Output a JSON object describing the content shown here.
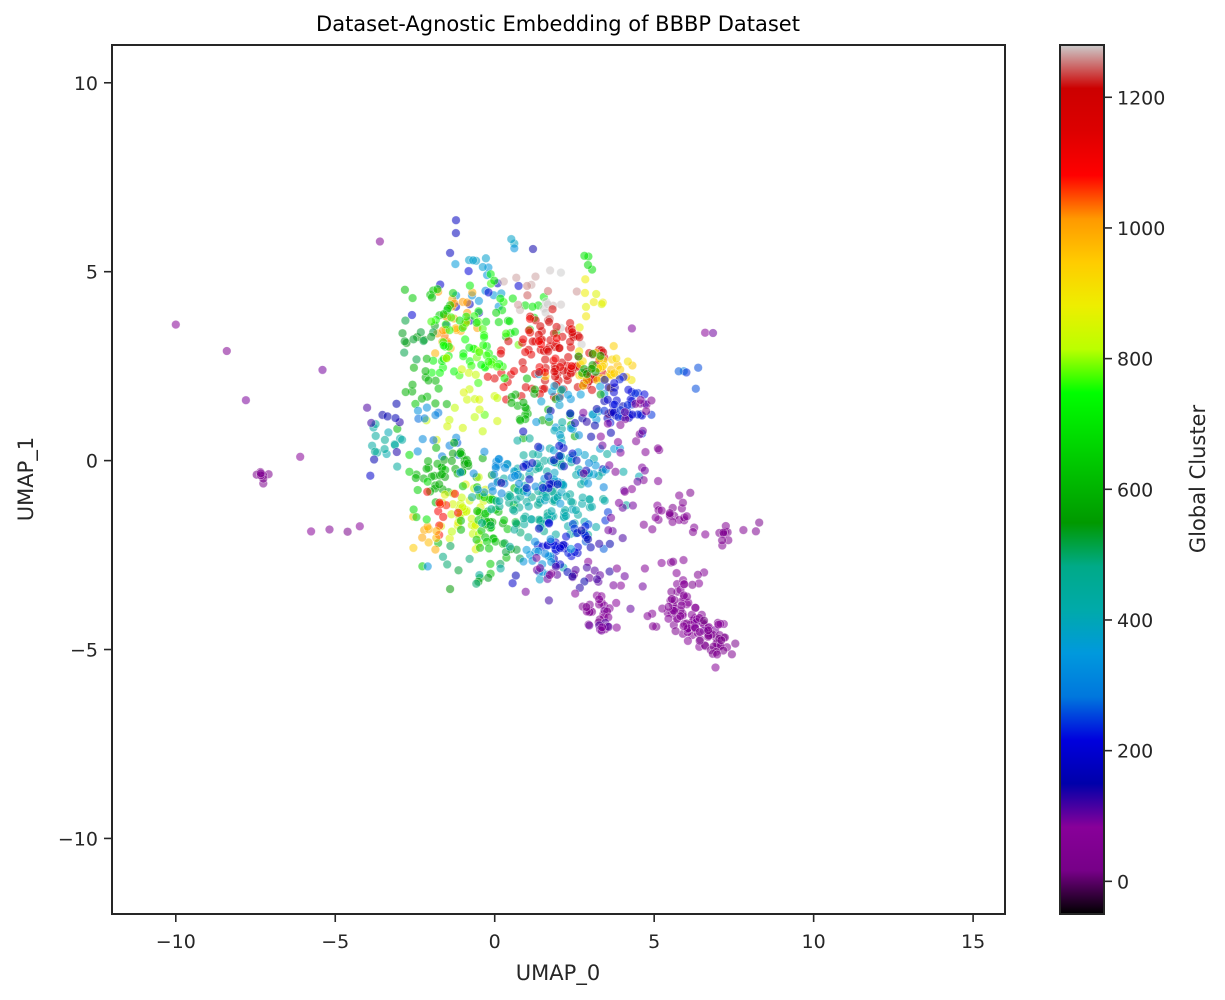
{
  "chart_data": {
    "type": "scatter",
    "title": "Dataset-Agnostic Embedding of BBBP Dataset",
    "xlabel": "UMAP_0",
    "ylabel": "UMAP_1",
    "xlim": [
      -12,
      16
    ],
    "ylim": [
      -12,
      11
    ],
    "xticks": [
      -10,
      -5,
      0,
      5,
      10,
      15
    ],
    "yticks": [
      -10,
      -5,
      0,
      5,
      10
    ],
    "xtick_labels": [
      "−10",
      "−5",
      "0",
      "5",
      "10",
      "15"
    ],
    "ytick_labels": [
      "−10",
      "−5",
      "0",
      "5",
      "10"
    ],
    "grid": false,
    "colorbar": {
      "label": "Global Cluster",
      "colormap": "nipy_spectral",
      "range": [
        -50,
        1280
      ],
      "ticks": [
        0,
        200,
        400,
        600,
        800,
        1000,
        1200
      ],
      "tick_labels": [
        "0",
        "200",
        "400",
        "600",
        "800",
        "1000",
        "1200"
      ]
    },
    "clusters": [
      {
        "cx": -7.3,
        "cy": -0.4,
        "sx": 0.15,
        "sy": 0.1,
        "n": 8,
        "c": 40
      },
      {
        "cx": -10.0,
        "cy": 3.6,
        "sx": 0.02,
        "sy": 0.02,
        "n": 1,
        "c": 60
      },
      {
        "cx": -8.4,
        "cy": 2.9,
        "sx": 0.02,
        "sy": 0.02,
        "n": 1,
        "c": 60
      },
      {
        "cx": -7.8,
        "cy": 1.6,
        "sx": 0.02,
        "sy": 0.02,
        "n": 1,
        "c": 90
      },
      {
        "cx": -5.4,
        "cy": 2.4,
        "sx": 0.02,
        "sy": 0.02,
        "n": 1,
        "c": 110
      },
      {
        "cx": -6.1,
        "cy": 0.1,
        "sx": 0.02,
        "sy": 0.02,
        "n": 1,
        "c": 60
      },
      {
        "cx": -5.0,
        "cy": -1.85,
        "sx": 0.6,
        "sy": 0.1,
        "n": 4,
        "c": 60
      },
      {
        "cx": -3.6,
        "cy": 5.8,
        "sx": 0.02,
        "sy": 0.02,
        "n": 1,
        "c": 80
      },
      {
        "cx": -1.2,
        "cy": 6.3,
        "sx": 0.05,
        "sy": 0.15,
        "n": 2,
        "c": 180
      },
      {
        "cx": 1.2,
        "cy": 5.6,
        "sx": 0.02,
        "sy": 0.02,
        "n": 1,
        "c": 170
      },
      {
        "cx": 0.5,
        "cy": 5.8,
        "sx": 0.2,
        "sy": 0.15,
        "n": 3,
        "c": 360
      },
      {
        "cx": 2.9,
        "cy": 5.3,
        "sx": 0.1,
        "sy": 0.15,
        "n": 4,
        "c": 690
      },
      {
        "cx": -0.2,
        "cy": 4.7,
        "sx": 0.5,
        "sy": 0.4,
        "n": 15,
        "c": 350
      },
      {
        "cx": -1.5,
        "cy": 4.5,
        "sx": 0.9,
        "sy": 0.6,
        "n": 12,
        "c": 190
      },
      {
        "cx": -1.3,
        "cy": 3.6,
        "sx": 0.4,
        "sy": 0.4,
        "n": 28,
        "c": 1000
      },
      {
        "cx": -1.9,
        "cy": 4.2,
        "sx": 0.4,
        "sy": 0.3,
        "n": 12,
        "c": 640
      },
      {
        "cx": -2.4,
        "cy": 3.3,
        "sx": 0.4,
        "sy": 0.5,
        "n": 14,
        "c": 530
      },
      {
        "cx": -0.6,
        "cy": 3.3,
        "sx": 0.6,
        "sy": 0.6,
        "n": 28,
        "c": 760
      },
      {
        "cx": -1.5,
        "cy": 2.7,
        "sx": 0.6,
        "sy": 0.4,
        "n": 20,
        "c": 740
      },
      {
        "cx": -2.2,
        "cy": 2.0,
        "sx": 0.4,
        "sy": 0.4,
        "n": 16,
        "c": 610
      },
      {
        "cx": 0.3,
        "cy": 3.9,
        "sx": 0.7,
        "sy": 0.5,
        "n": 22,
        "c": 700
      },
      {
        "cx": 1.6,
        "cy": 4.1,
        "sx": 0.5,
        "sy": 0.4,
        "n": 22,
        "c": 1270
      },
      {
        "cx": 1.9,
        "cy": 3.2,
        "sx": 0.7,
        "sy": 0.5,
        "n": 40,
        "c": 1160
      },
      {
        "cx": 2.5,
        "cy": 2.3,
        "sx": 0.6,
        "sy": 0.4,
        "n": 55,
        "c": 1170
      },
      {
        "cx": 0.9,
        "cy": 2.3,
        "sx": 0.5,
        "sy": 0.4,
        "n": 18,
        "c": 1130
      },
      {
        "cx": 3.6,
        "cy": 2.4,
        "sx": 0.5,
        "sy": 0.2,
        "n": 35,
        "c": 930
      },
      {
        "cx": 3.0,
        "cy": 3.9,
        "sx": 0.3,
        "sy": 0.6,
        "n": 10,
        "c": 870
      },
      {
        "cx": -0.8,
        "cy": 1.5,
        "sx": 0.6,
        "sy": 0.6,
        "n": 22,
        "c": 830
      },
      {
        "cx": 1.0,
        "cy": 1.2,
        "sx": 0.8,
        "sy": 0.6,
        "n": 25,
        "c": 600
      },
      {
        "cx": 2.5,
        "cy": 1.5,
        "sx": 0.7,
        "sy": 0.5,
        "n": 22,
        "c": 360
      },
      {
        "cx": 3.5,
        "cy": 1.2,
        "sx": 0.6,
        "sy": 0.5,
        "n": 20,
        "c": 150
      },
      {
        "cx": 4.3,
        "cy": 1.5,
        "sx": 0.4,
        "sy": 0.3,
        "n": 32,
        "c": 220
      },
      {
        "cx": 4.5,
        "cy": 0.9,
        "sx": 0.6,
        "sy": 0.6,
        "n": 14,
        "c": 60
      },
      {
        "cx": 5.9,
        "cy": 2.1,
        "sx": 0.3,
        "sy": 0.2,
        "n": 5,
        "c": 270
      },
      {
        "cx": 5.9,
        "cy": 3.3,
        "sx": 0.4,
        "sy": 0.2,
        "n": 2,
        "c": 80
      },
      {
        "cx": 3.0,
        "cy": 2.3,
        "sx": 0.3,
        "sy": 0.3,
        "n": 10,
        "c": 560
      },
      {
        "cx": -3.3,
        "cy": 0.3,
        "sx": 0.3,
        "sy": 0.3,
        "n": 15,
        "c": 430
      },
      {
        "cx": -3.5,
        "cy": 1.0,
        "sx": 0.3,
        "sy": 0.6,
        "n": 8,
        "c": 150
      },
      {
        "cx": -2.0,
        "cy": 0.7,
        "sx": 0.6,
        "sy": 0.5,
        "n": 14,
        "c": 300
      },
      {
        "cx": -1.8,
        "cy": -0.5,
        "sx": 0.3,
        "sy": 0.3,
        "n": 22,
        "c": 590
      },
      {
        "cx": -1.0,
        "cy": -0.1,
        "sx": 0.4,
        "sy": 0.3,
        "n": 20,
        "c": 580
      },
      {
        "cx": -0.8,
        "cy": -1.3,
        "sx": 0.4,
        "sy": 0.4,
        "n": 40,
        "c": 840
      },
      {
        "cx": -0.2,
        "cy": -1.8,
        "sx": 0.5,
        "sy": 0.5,
        "n": 45,
        "c": 630
      },
      {
        "cx": -1.6,
        "cy": -1.3,
        "sx": 0.3,
        "sy": 0.3,
        "n": 10,
        "c": 1080
      },
      {
        "cx": -2.2,
        "cy": -1.9,
        "sx": 0.3,
        "sy": 0.3,
        "n": 10,
        "c": 990
      },
      {
        "cx": -2.4,
        "cy": -1.1,
        "sx": 0.2,
        "sy": 0.6,
        "n": 8,
        "c": 680
      },
      {
        "cx": -1.2,
        "cy": -2.7,
        "sx": 0.4,
        "sy": 0.4,
        "n": 6,
        "c": 500
      },
      {
        "cx": 0.3,
        "cy": -2.4,
        "sx": 0.4,
        "sy": 0.4,
        "n": 12,
        "c": 520
      },
      {
        "cx": 1.2,
        "cy": -0.8,
        "sx": 0.8,
        "sy": 0.7,
        "n": 85,
        "c": 450
      },
      {
        "cx": 2.2,
        "cy": -1.1,
        "sx": 0.8,
        "sy": 0.7,
        "n": 60,
        "c": 420
      },
      {
        "cx": 0.2,
        "cy": -0.4,
        "sx": 0.6,
        "sy": 0.4,
        "n": 30,
        "c": 320
      },
      {
        "cx": 2.6,
        "cy": -0.1,
        "sx": 0.6,
        "sy": 0.5,
        "n": 25,
        "c": 340
      },
      {
        "cx": 1.8,
        "cy": 0.0,
        "sx": 0.6,
        "sy": 0.5,
        "n": 22,
        "c": 180
      },
      {
        "cx": 3.0,
        "cy": -1.8,
        "sx": 0.3,
        "sy": 0.3,
        "n": 10,
        "c": 250
      },
      {
        "cx": 2.0,
        "cy": -2.3,
        "sx": 0.4,
        "sy": 0.3,
        "n": 30,
        "c": 210
      },
      {
        "cx": 1.4,
        "cy": -2.7,
        "sx": 0.5,
        "sy": 0.3,
        "n": 18,
        "c": 330
      },
      {
        "cx": 2.0,
        "cy": -3.1,
        "sx": 0.7,
        "sy": 0.2,
        "n": 20,
        "c": 100
      },
      {
        "cx": 3.0,
        "cy": -2.8,
        "sx": 0.3,
        "sy": 0.5,
        "n": 10,
        "c": 140
      },
      {
        "cx": 3.3,
        "cy": -4.0,
        "sx": 0.3,
        "sy": 0.3,
        "n": 25,
        "c": 60
      },
      {
        "cx": 3.4,
        "cy": -4.4,
        "sx": 0.2,
        "sy": 0.15,
        "n": 10,
        "c": 100
      },
      {
        "cx": 4.0,
        "cy": -0.2,
        "sx": 0.5,
        "sy": 0.8,
        "n": 20,
        "c": 80
      },
      {
        "cx": 4.0,
        "cy": -1.6,
        "sx": 0.3,
        "sy": 0.6,
        "n": 8,
        "c": 100
      },
      {
        "cx": 4.4,
        "cy": -3.2,
        "sx": 0.4,
        "sy": 0.3,
        "n": 5,
        "c": 90
      },
      {
        "cx": 5.8,
        "cy": -3.8,
        "sx": 0.25,
        "sy": 0.3,
        "n": 30,
        "c": 60
      },
      {
        "cx": 6.5,
        "cy": -4.4,
        "sx": 0.4,
        "sy": 0.3,
        "n": 45,
        "c": 70
      },
      {
        "cx": 6.9,
        "cy": -4.8,
        "sx": 0.3,
        "sy": 0.2,
        "n": 25,
        "c": 40
      },
      {
        "cx": 5.4,
        "cy": -4.0,
        "sx": 0.3,
        "sy": 0.3,
        "n": 8,
        "c": 60
      },
      {
        "cx": 6.3,
        "cy": -3.1,
        "sx": 0.4,
        "sy": 0.3,
        "n": 6,
        "c": 60
      },
      {
        "cx": 5.4,
        "cy": -2.6,
        "sx": 0.3,
        "sy": 0.2,
        "n": 4,
        "c": 60
      },
      {
        "cx": 6.0,
        "cy": -1.4,
        "sx": 0.4,
        "sy": 0.2,
        "n": 16,
        "c": 50
      },
      {
        "cx": 7.3,
        "cy": -1.9,
        "sx": 0.4,
        "sy": 0.15,
        "n": 14,
        "c": 50
      },
      {
        "cx": 5.2,
        "cy": -1.3,
        "sx": 0.2,
        "sy": 0.1,
        "n": 4,
        "c": 60
      },
      {
        "cx": 4.9,
        "cy": -4.3,
        "sx": 0.1,
        "sy": 0.1,
        "n": 2,
        "c": 60
      },
      {
        "cx": -3.9,
        "cy": -0.4,
        "sx": 0.05,
        "sy": 0.05,
        "n": 1,
        "c": 170
      },
      {
        "cx": -4.0,
        "cy": 1.4,
        "sx": 0.05,
        "sy": 0.05,
        "n": 1,
        "c": 130
      },
      {
        "cx": -1.4,
        "cy": -3.4,
        "sx": 0.05,
        "sy": 0.05,
        "n": 1,
        "c": 560
      },
      {
        "cx": -2.1,
        "cy": -2.8,
        "sx": 0.05,
        "sy": 0.05,
        "n": 1,
        "c": 340
      },
      {
        "cx": 0.6,
        "cy": -3.2,
        "sx": 0.1,
        "sy": 0.1,
        "n": 2,
        "c": 170
      },
      {
        "cx": 1.7,
        "cy": -3.7,
        "sx": 0.05,
        "sy": 0.05,
        "n": 1,
        "c": 130
      },
      {
        "cx": 4.3,
        "cy": 3.5,
        "sx": 0.05,
        "sy": 0.05,
        "n": 1,
        "c": 80
      },
      {
        "cx": 1.1,
        "cy": 3.0,
        "sx": 0.6,
        "sy": 0.5,
        "n": 12,
        "c": 1110
      },
      {
        "cx": 0.0,
        "cy": 2.6,
        "sx": 0.6,
        "sy": 0.5,
        "n": 12,
        "c": 760
      }
    ]
  }
}
